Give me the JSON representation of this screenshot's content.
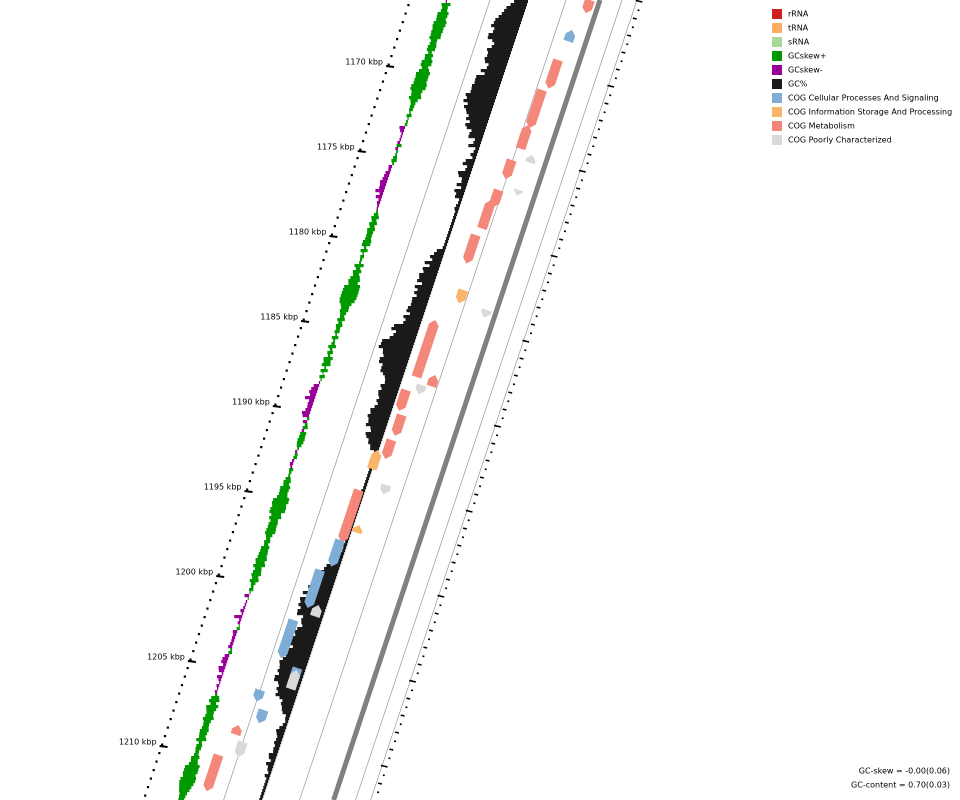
{
  "scale": {
    "ticks": [
      "1170 kbp",
      "1175 kbp",
      "1180 kbp",
      "1185 kbp",
      "1190 kbp",
      "1195 kbp",
      "1200 kbp",
      "1205 kbp",
      "1210 kbp"
    ]
  },
  "legend": {
    "items": [
      {
        "label": "rRNA",
        "color": "#cc1f1f"
      },
      {
        "label": "tRNA",
        "color": "#fdae61"
      },
      {
        "label": "sRNA",
        "color": "#a6d99a"
      },
      {
        "label": "GCskew+",
        "color": "#009900"
      },
      {
        "label": "GCskew-",
        "color": "#990099"
      },
      {
        "label": "GC%",
        "color": "#1a1a1a"
      },
      {
        "label": "COG Cellular Processes And Signaling",
        "color": "#7fadd6"
      },
      {
        "label": "COG Information Storage And Processing",
        "color": "#fbb56b"
      },
      {
        "label": "COG Metabolism",
        "color": "#f4877a"
      },
      {
        "label": "COG Poorly Characterized",
        "color": "#d9d9d9"
      }
    ]
  },
  "stats": [
    "GC-skew = -0.00(0.06)",
    "GC-content = 0.70(0.03)"
  ]
}
